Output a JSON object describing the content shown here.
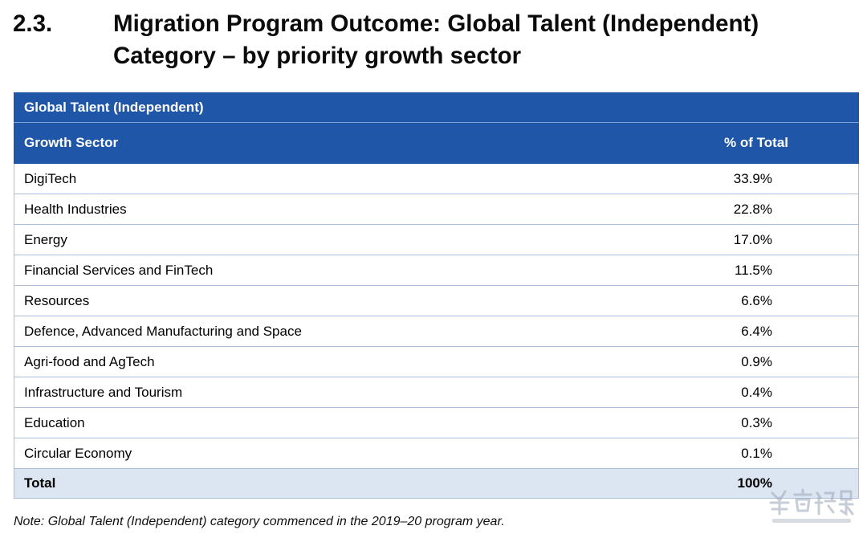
{
  "section": {
    "number": "2.3.",
    "title": "Migration Program Outcome: Global Talent (Independent) Category – by priority growth sector"
  },
  "table": {
    "category_header": "Global Talent (Independent)",
    "col_headers": {
      "sector": "Growth Sector",
      "percent": "% of Total"
    },
    "rows": [
      {
        "sector": "DigiTech",
        "percent": "33.9%"
      },
      {
        "sector": "Health Industries",
        "percent": "22.8%"
      },
      {
        "sector": "Energy",
        "percent": "17.0%"
      },
      {
        "sector": "Financial Services and FinTech",
        "percent": "11.5%"
      },
      {
        "sector": "Resources",
        "percent": "6.6%"
      },
      {
        "sector": "Defence, Advanced Manufacturing and Space",
        "percent": "6.4%"
      },
      {
        "sector": "Agri-food and AgTech",
        "percent": "0.9%"
      },
      {
        "sector": "Infrastructure and Tourism",
        "percent": "0.4%"
      },
      {
        "sector": "Education",
        "percent": "0.3%"
      },
      {
        "sector": "Circular Economy",
        "percent": "0.1%"
      }
    ],
    "total": {
      "label": "Total",
      "percent": "100%"
    }
  },
  "note": "Note: Global Talent (Independent) category commenced in the 2019–20 program year.",
  "colors": {
    "header_blue": "#1f56a7",
    "total_row": "#dce6f2",
    "grid_line": "#a9bfdc"
  }
}
